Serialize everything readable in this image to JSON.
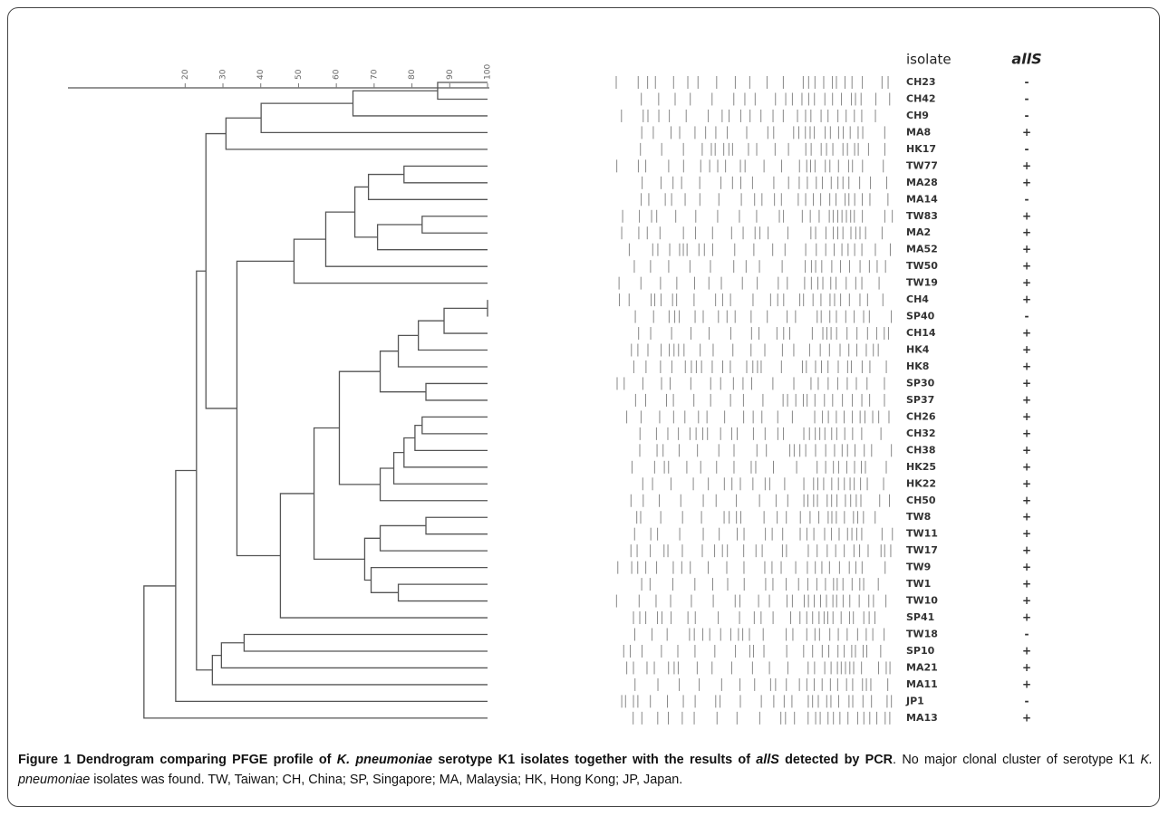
{
  "figure": {
    "xlim": [
      -11,
      100
    ],
    "xticks": [
      20,
      30,
      40,
      50,
      60,
      70,
      80,
      90,
      100
    ],
    "headers": {
      "isolate": "isolate",
      "gene": "allS"
    },
    "isolates": [
      "CH23",
      "CH42",
      "CH9",
      "MA8",
      "HK17",
      "TW77",
      "MA28",
      "MA14",
      "TW83",
      "MA2",
      "MA52",
      "TW50",
      "TW19",
      "CH4",
      "SP40",
      "CH14",
      "HK4",
      "HK8",
      "SP30",
      "SP37",
      "CH26",
      "CH32",
      "CH38",
      "HK25",
      "HK22",
      "CH50",
      "TW8",
      "TW11",
      "TW17",
      "TW9",
      "TW1",
      "TW10",
      "SP41",
      "TW18",
      "SP10",
      "MA21",
      "MA11",
      "JP1",
      "MA13"
    ],
    "allS": [
      "-",
      "-",
      "-",
      "+",
      "-",
      "+",
      "+",
      "-",
      "+",
      "+",
      "+",
      "+",
      "+",
      "+",
      "-",
      "+",
      "+",
      "+",
      "+",
      "+",
      "+",
      "+",
      "+",
      "+",
      "+",
      "+",
      "+",
      "+",
      "+",
      "+",
      "+",
      "+",
      "+",
      "-",
      "+",
      "+",
      "+",
      "-",
      "+"
    ],
    "merges": [
      [
        0,
        1,
        86.8
      ],
      [
        39,
        2,
        64.4
      ],
      [
        40,
        3,
        40.1
      ],
      [
        41,
        4,
        30.8
      ],
      [
        5,
        6,
        77.9
      ],
      [
        43,
        7,
        68.5
      ],
      [
        8,
        9,
        82.7
      ],
      [
        45,
        10,
        70.9
      ],
      [
        44,
        46,
        64.9
      ],
      [
        47,
        11,
        57.2
      ],
      [
        48,
        12,
        48.8
      ],
      [
        13,
        14,
        100
      ],
      [
        50,
        15,
        88.5
      ],
      [
        51,
        16,
        81.7
      ],
      [
        52,
        17,
        76.4
      ],
      [
        18,
        19,
        83.7
      ],
      [
        53,
        54,
        71.6
      ],
      [
        20,
        21,
        82.7
      ],
      [
        56,
        22,
        80.8
      ],
      [
        57,
        23,
        77.9
      ],
      [
        58,
        24,
        75.2
      ],
      [
        59,
        25,
        71.6
      ],
      [
        55,
        60,
        60.8
      ],
      [
        26,
        27,
        83.7
      ],
      [
        62,
        28,
        71.6
      ],
      [
        30,
        31,
        76.4
      ],
      [
        29,
        64,
        69.2
      ],
      [
        63,
        65,
        67.5
      ],
      [
        61,
        66,
        54.1
      ],
      [
        67,
        32,
        45.2
      ],
      [
        49,
        68,
        33.7
      ],
      [
        42,
        69,
        25.5
      ],
      [
        33,
        34,
        35.6
      ],
      [
        71,
        35,
        29.6
      ],
      [
        72,
        36,
        27.2
      ],
      [
        70,
        73,
        23.0
      ],
      [
        74,
        37,
        17.5
      ],
      [
        75,
        38,
        9.1
      ]
    ]
  },
  "caption": [
    "Figure 1",
    " Dendrogram comparing PFGE profile of ",
    "K. pneumoniae",
    " serotype K1 isolates together with the results of ",
    "allS",
    " detected by PCR",
    ". No major clonal cluster of serotype K1 ",
    "K. pneumoniae",
    " isolates was found. TW, Taiwan; CH, China; SP, Singapore; MA, Malaysia; HK, Hong Kong; JP, Japan."
  ]
}
